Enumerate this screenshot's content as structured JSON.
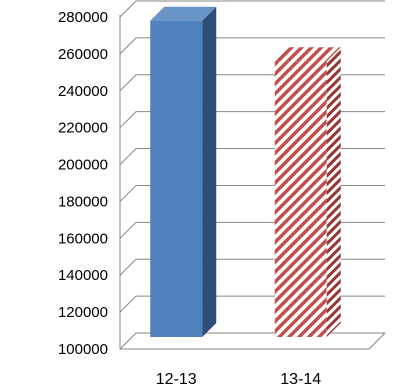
{
  "chart_data": {
    "type": "bar",
    "title": "",
    "xlabel": "",
    "ylabel": "",
    "categories": [
      "12-13",
      "13-14"
    ],
    "values": [
      278000,
      256000
    ],
    "ylim": [
      100000,
      280000
    ],
    "ytick_step": 20000,
    "yticks": [
      "100000",
      "120000",
      "140000",
      "160000",
      "180000",
      "200000",
      "220000",
      "240000",
      "260000",
      "280000"
    ],
    "grid": true,
    "legend": "none",
    "style": "3d",
    "colors": {
      "bar1_front": "#4f81bd",
      "bar1_side": "#2c4d75",
      "bar2_stripe": "#c0504d",
      "bar2_side_stripe": "#943634",
      "gridline": "#868686"
    }
  }
}
